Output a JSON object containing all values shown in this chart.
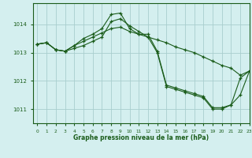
{
  "title": "Graphe pression niveau de la mer (hPa)",
  "background_color": "#d4efef",
  "line_color": "#1a5c1a",
  "grid_color": "#a8cece",
  "xlim": [
    -0.5,
    23
  ],
  "ylim": [
    1010.5,
    1014.75
  ],
  "yticks": [
    1011,
    1012,
    1013,
    1014
  ],
  "xticks": [
    0,
    1,
    2,
    3,
    4,
    5,
    6,
    7,
    8,
    9,
    10,
    11,
    12,
    13,
    14,
    15,
    16,
    17,
    18,
    19,
    20,
    21,
    22,
    23
  ],
  "hours": [
    0,
    1,
    2,
    3,
    4,
    5,
    6,
    7,
    8,
    9,
    10,
    11,
    12,
    13,
    14,
    15,
    16,
    17,
    18,
    19,
    20,
    21,
    22,
    23
  ],
  "series1": [
    1013.3,
    1013.35,
    1013.1,
    1013.05,
    1013.25,
    1013.5,
    1013.65,
    1013.85,
    1014.35,
    1014.4,
    1013.85,
    1013.65,
    1013.65,
    1013.05,
    1011.85,
    1011.75,
    1011.65,
    1011.55,
    1011.45,
    1011.05,
    1011.05,
    1011.15,
    1012.1,
    1012.35
  ],
  "series2": [
    1013.3,
    1013.35,
    1013.1,
    1013.05,
    1013.25,
    1013.4,
    1013.55,
    1013.7,
    1013.85,
    1013.9,
    1013.75,
    1013.65,
    1013.55,
    1013.45,
    1013.35,
    1013.2,
    1013.1,
    1013.0,
    1012.85,
    1012.7,
    1012.55,
    1012.45,
    1012.2,
    1012.35
  ],
  "series3": [
    1013.3,
    1013.35,
    1013.1,
    1013.05,
    1013.15,
    1013.25,
    1013.4,
    1013.55,
    1014.1,
    1014.2,
    1013.95,
    1013.75,
    1013.55,
    1013.0,
    1011.8,
    1011.7,
    1011.6,
    1011.5,
    1011.4,
    1011.0,
    1011.0,
    1011.15,
    1011.5,
    1012.35
  ]
}
